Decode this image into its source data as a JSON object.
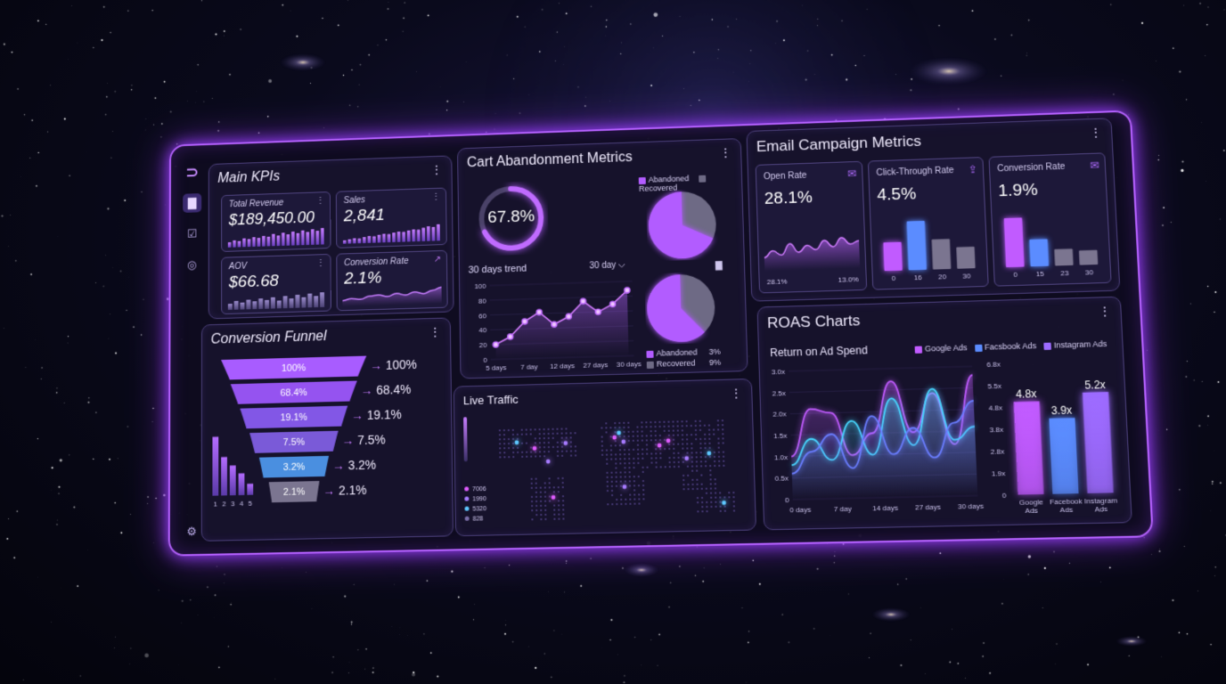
{
  "main_kpis": {
    "title": "Main KPIs",
    "total_revenue": {
      "label": "Total Revenue",
      "value": "$189,450.00",
      "spark": [
        0.3,
        0.4,
        0.35,
        0.5,
        0.45,
        0.55,
        0.5,
        0.6,
        0.55,
        0.7,
        0.6,
        0.75,
        0.65,
        0.8,
        0.7,
        0.85,
        0.75,
        0.9,
        0.8,
        0.95
      ]
    },
    "sales": {
      "label": "Sales",
      "value": "2,841",
      "spark": [
        0.2,
        0.25,
        0.3,
        0.28,
        0.35,
        0.4,
        0.38,
        0.45,
        0.5,
        0.48,
        0.55,
        0.6,
        0.58,
        0.65,
        0.7,
        0.68,
        0.78,
        0.85,
        0.8,
        0.95
      ]
    },
    "aov": {
      "label": "AOV",
      "value": "$66.68",
      "spark": [
        0.35,
        0.5,
        0.4,
        0.55,
        0.45,
        0.6,
        0.5,
        0.65,
        0.45,
        0.7,
        0.55,
        0.75,
        0.6,
        0.8,
        0.65,
        0.85
      ]
    },
    "conversion_rate": {
      "label": "Conversion Rate",
      "value": "2.1%",
      "spark": [
        0.3,
        0.4,
        0.35,
        0.5,
        0.55,
        0.45,
        0.6,
        0.5,
        0.65,
        0.55,
        0.7,
        0.85
      ]
    }
  },
  "cart_abandonment": {
    "title": "Cart Abandonment Metrics",
    "gauge_value": "67.8%",
    "gauge_fraction": 0.678,
    "legend_abandoned": "Abandoned",
    "legend_recovered": "Recovered",
    "trend_label": "30 days trend",
    "range_selector": "30 day",
    "pie_top_abandoned_fraction": 0.68,
    "pie_bottom_abandoned_fraction": 0.62,
    "pie_abandoned_pct": "3%",
    "pie_recovered_pct": "9%",
    "colors": {
      "abandoned": "#b25cff",
      "recovered": "#6e6a85"
    },
    "chart_data": {
      "type": "line",
      "x_ticks": [
        "5 days",
        "7 day",
        "12 days",
        "27 days",
        "30 days"
      ],
      "y_ticks": [
        "0",
        "20",
        "40",
        "60",
        "80",
        "100"
      ],
      "ylim": [
        0,
        100
      ],
      "values": [
        20,
        30,
        50,
        62,
        45,
        55,
        75,
        60,
        70,
        88
      ]
    }
  },
  "email_campaign": {
    "title": "Email Campaign Metrics",
    "open_rate": {
      "label": "Open Rate",
      "value": "28.1%",
      "start_label": "28.1%",
      "end_label": "13.0%",
      "chart_data": {
        "type": "area",
        "values": [
          0.3,
          0.45,
          0.35,
          0.6,
          0.4,
          0.55,
          0.45,
          0.65,
          0.5,
          0.7,
          0.55,
          0.62
        ]
      }
    },
    "ctr": {
      "label": "Click-Through Rate",
      "value": "4.5%",
      "chart_data": {
        "type": "bar",
        "categories": [
          "0",
          "16",
          "20",
          "30"
        ],
        "values": [
          0.55,
          0.95,
          0.58,
          0.42
        ]
      }
    },
    "conversion_rate": {
      "label": "Conversion Rate",
      "value": "1.9%",
      "chart_data": {
        "type": "bar",
        "categories": [
          "0",
          "15",
          "23",
          "30"
        ],
        "values": [
          0.95,
          0.52,
          0.32,
          0.28
        ]
      }
    }
  },
  "funnel": {
    "title": "Conversion Funnel",
    "steps": [
      {
        "label": "100%",
        "value": 1.0,
        "color": "#a85cff"
      },
      {
        "label": "68.4%",
        "value": 0.684,
        "color": "#9553f0"
      },
      {
        "label": "19.1%",
        "value": 0.191,
        "color": "#8257e6"
      },
      {
        "label": "7.5%",
        "value": 0.075,
        "color": "#7a5ad8"
      },
      {
        "label": "3.2%",
        "value": 0.032,
        "color": "#4a8fe0"
      },
      {
        "label": "2.1%",
        "value": 0.021,
        "color": "#7b7590"
      }
    ],
    "mini_bars": {
      "categories": [
        "1",
        "2",
        "3",
        "4",
        "5"
      ],
      "values": [
        0.95,
        0.62,
        0.48,
        0.35,
        0.18
      ]
    }
  },
  "live_traffic": {
    "title": "Live Traffic",
    "legend": [
      "7006",
      "1990",
      "5320",
      "828"
    ],
    "legend_colors": [
      "#e05cff",
      "#a77bff",
      "#5ec8ff",
      "#7a6ea8"
    ]
  },
  "roas": {
    "title": "ROAS Charts",
    "subtitle": "Return on Ad Spend",
    "series_names": [
      "Google Ads",
      "Facsbook Ads",
      "Instagram Ads"
    ],
    "series_colors": [
      "#c15bff",
      "#5b8cff",
      "#9d6bff"
    ],
    "line_chart": {
      "type": "line",
      "x_ticks": [
        "0 days",
        "7 day",
        "14 days",
        "27 days",
        "30 days"
      ],
      "y_ticks": [
        "0",
        "0.5x",
        "1.0x",
        "1.5x",
        "2.0x",
        "2.5x",
        "3.0x"
      ],
      "ylim": [
        0,
        3.0
      ],
      "series": [
        {
          "color": "#c15bff",
          "values": [
            1.0,
            2.1,
            2.0,
            1.0,
            1.5,
            2.7,
            1.5,
            2.4,
            1.2,
            2.8
          ]
        },
        {
          "color": "#47d7ff",
          "values": [
            0.8,
            1.4,
            0.9,
            1.8,
            1.0,
            2.3,
            1.2,
            2.5,
            1.3,
            1.6
          ]
        },
        {
          "color": "#6a7dff",
          "values": [
            0.6,
            1.1,
            1.5,
            0.7,
            1.9,
            1.0,
            1.6,
            0.9,
            1.7,
            2.2
          ]
        }
      ]
    },
    "bar_chart": {
      "type": "bar",
      "categories": [
        "Google Ads",
        "Facebook Ads",
        "Instagram Ads"
      ],
      "values": [
        4.8,
        3.9,
        5.2
      ],
      "value_labels": [
        "4.8x",
        "3.9x",
        "5.2x"
      ],
      "y_ticks": [
        "0",
        "1.9x",
        "2.8x",
        "3.8x",
        "4.8x",
        "5.5x",
        "6.8x"
      ],
      "ylim": [
        0,
        6.8
      ]
    }
  }
}
